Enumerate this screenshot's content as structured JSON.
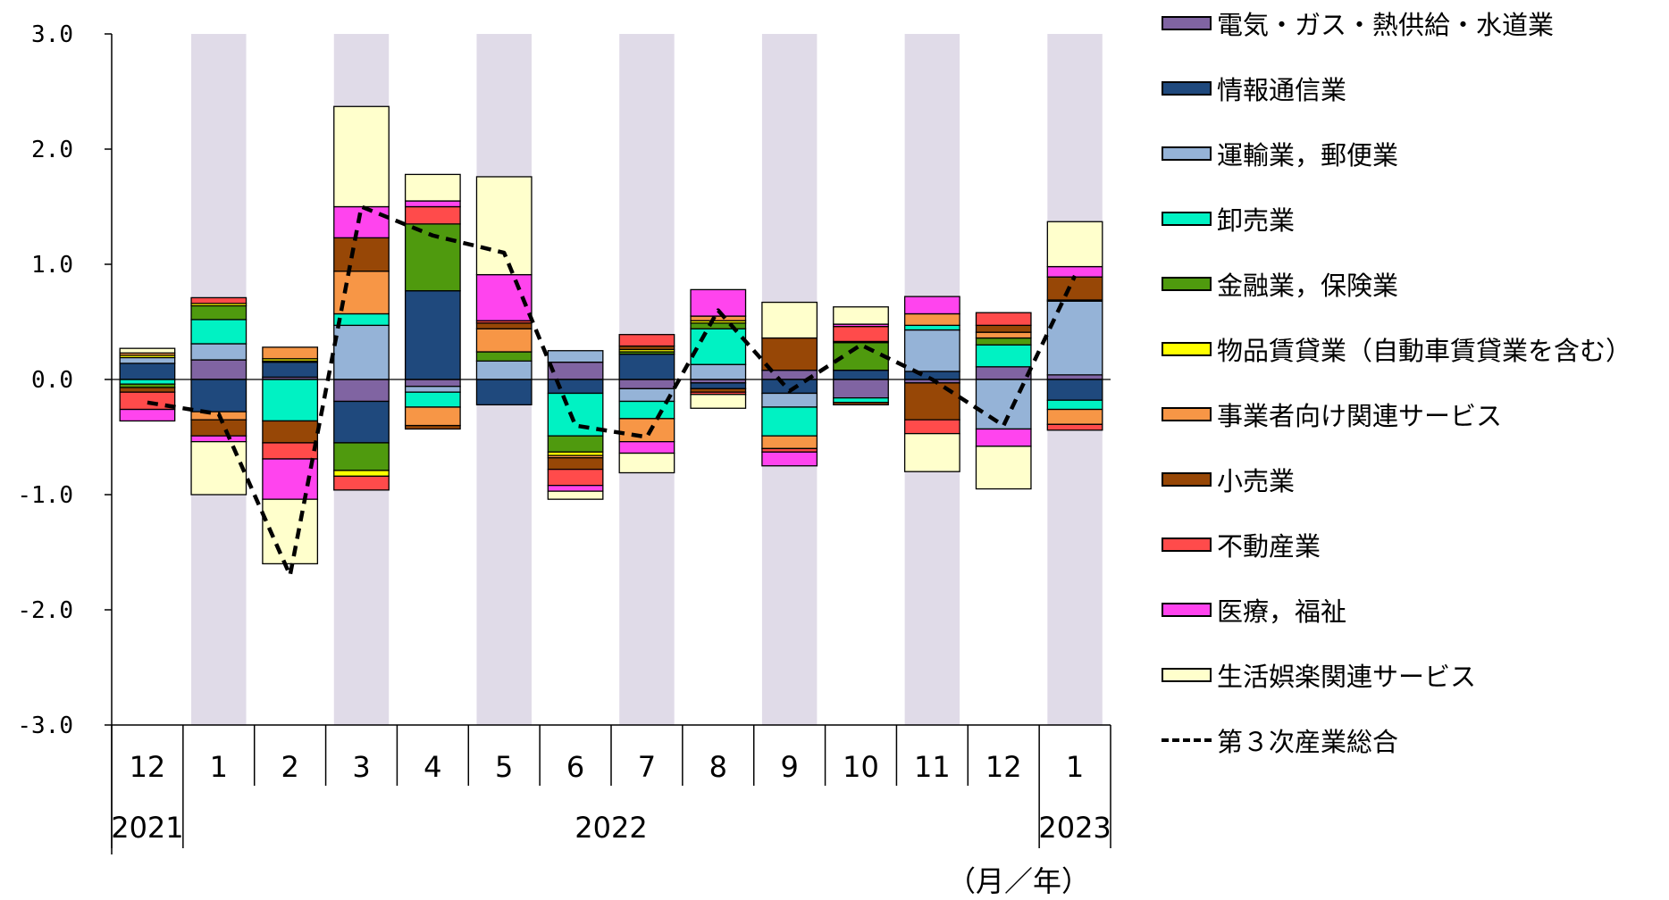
{
  "chart_data": {
    "type": "bar",
    "stacked": true,
    "ylim": [
      -3.0,
      3.0
    ],
    "yticks": [
      "3.0",
      "2.0",
      "1.0",
      "0.0",
      "-1.0",
      "-2.0",
      "-3.0"
    ],
    "categories": [
      "12",
      "1",
      "2",
      "3",
      "4",
      "5",
      "6",
      "7",
      "8",
      "9",
      "10",
      "11",
      "12",
      "1"
    ],
    "year_labels": [
      "2021",
      "2022",
      "2023"
    ],
    "unit_label": "（月／年）",
    "shaded_bands": [
      1,
      3,
      5,
      7,
      9,
      11,
      13
    ],
    "band_color": "#e0dbe8",
    "series": [
      {
        "name": "電気・ガス・熱供給・水道業",
        "color": "#8064a2",
        "values": [
          0.0,
          0.17,
          0.02,
          -0.19,
          -0.06,
          0.0,
          0.15,
          -0.08,
          -0.03,
          0.08,
          -0.16,
          -0.03,
          0.11,
          0.04
        ]
      },
      {
        "name": "情報通信業",
        "color": "#1f497d",
        "values": [
          0.14,
          -0.28,
          0.13,
          -0.36,
          0.77,
          -0.22,
          -0.12,
          0.22,
          -0.05,
          -0.12,
          0.08,
          0.07,
          0.0,
          -0.18
        ]
      },
      {
        "name": "運輸業，郵便業",
        "color": "#95b3d7",
        "values": [
          0.05,
          0.14,
          0.01,
          0.47,
          -0.05,
          0.16,
          0.1,
          -0.11,
          0.13,
          -0.12,
          0.0,
          0.36,
          -0.43,
          0.64
        ]
      },
      {
        "name": "卸売業",
        "color": "#00f2c3",
        "values": [
          -0.04,
          0.21,
          -0.36,
          0.1,
          -0.13,
          0.0,
          -0.37,
          -0.15,
          0.31,
          -0.25,
          -0.04,
          0.04,
          0.19,
          -0.08
        ]
      },
      {
        "name": "金融業，保険業",
        "color": "#4f9a0e",
        "values": [
          -0.03,
          0.12,
          0.0,
          -0.24,
          0.58,
          0.08,
          -0.14,
          0.02,
          0.05,
          0.0,
          0.24,
          0.0,
          0.06,
          0.0
        ]
      },
      {
        "name": "物品賃貸業（自動車賃貸業を含む）",
        "color": "#ffff00",
        "values": [
          0.02,
          0.02,
          0.02,
          -0.05,
          0.0,
          0.0,
          -0.03,
          0.02,
          0.02,
          0.0,
          0.01,
          0.0,
          0.0,
          0.01
        ]
      },
      {
        "name": "事業者向け関連サービス",
        "color": "#f79646",
        "values": [
          0.02,
          -0.07,
          0.1,
          0.37,
          -0.16,
          0.2,
          -0.02,
          -0.2,
          0.04,
          -0.11,
          0.0,
          0.1,
          0.05,
          -0.13
        ]
      },
      {
        "name": "小売業",
        "color": "#974706",
        "values": [
          -0.04,
          -0.14,
          -0.19,
          0.29,
          -0.03,
          0.05,
          -0.1,
          0.03,
          -0.03,
          0.28,
          -0.02,
          -0.32,
          0.06,
          0.2
        ]
      },
      {
        "name": "不動産業",
        "color": "#ff4b4b",
        "values": [
          -0.15,
          0.05,
          -0.14,
          -0.12,
          0.15,
          0.02,
          -0.14,
          0.1,
          -0.02,
          -0.03,
          0.13,
          -0.12,
          0.11,
          -0.05
        ]
      },
      {
        "name": "医療，福祉",
        "color": "#ff44ee",
        "values": [
          -0.1,
          -0.05,
          -0.35,
          0.27,
          0.05,
          0.4,
          -0.05,
          -0.1,
          0.23,
          -0.12,
          0.02,
          0.15,
          -0.15,
          0.09
        ]
      },
      {
        "name": "生活娯楽関連サービス",
        "color": "#ffffcc",
        "values": [
          0.04,
          -0.46,
          -0.56,
          0.87,
          0.23,
          0.85,
          -0.07,
          -0.17,
          -0.12,
          0.31,
          0.15,
          -0.33,
          -0.37,
          0.39
        ]
      }
    ],
    "line": {
      "name": "第３次産業総合",
      "values": [
        -0.2,
        -0.3,
        -1.7,
        1.5,
        1.25,
        1.1,
        -0.4,
        -0.5,
        0.6,
        -0.1,
        0.3,
        0.0,
        -0.4,
        0.9
      ]
    }
  }
}
